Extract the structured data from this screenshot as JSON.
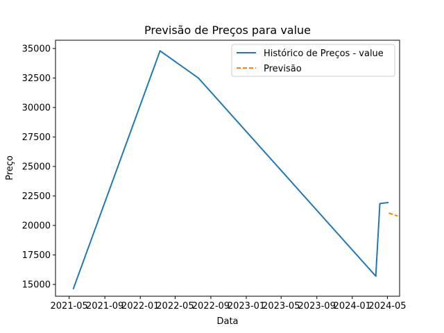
{
  "chart_data": {
    "type": "line",
    "title": "Previsão de Preços para value",
    "xlabel": "Data",
    "ylabel": "Preço",
    "x_tick_labels": [
      "2021-05",
      "2021-09",
      "2022-01",
      "2022-05",
      "2022-09",
      "2023-01",
      "2023-05",
      "2023-09",
      "2024-01",
      "2024-05"
    ],
    "x_tick_dates": [
      "2021-05-01",
      "2021-09-01",
      "2022-01-01",
      "2022-05-01",
      "2022-09-01",
      "2023-01-01",
      "2023-05-01",
      "2023-09-01",
      "2024-01-01",
      "2024-05-01"
    ],
    "xlim": [
      "2021-03-15",
      "2024-06-12"
    ],
    "y_ticks": [
      15000,
      17500,
      20000,
      22500,
      25000,
      27500,
      30000,
      32500,
      35000
    ],
    "y_tick_labels": [
      "15000",
      "17500",
      "20000",
      "22500",
      "25000",
      "27500",
      "30000",
      "32500",
      "35000"
    ],
    "ylim": [
      14000,
      35700
    ],
    "series": [
      {
        "name": "Histórico de Preços - value",
        "color": "#1f77b4",
        "style": "solid",
        "points": [
          {
            "date": "2021-05-15",
            "value": 14600
          },
          {
            "date": "2022-03-10",
            "value": 34800
          },
          {
            "date": "2022-07-20",
            "value": 32500
          },
          {
            "date": "2024-03-22",
            "value": 15700
          },
          {
            "date": "2024-04-05",
            "value": 21850
          },
          {
            "date": "2024-05-05",
            "value": 21950
          }
        ]
      },
      {
        "name": "Previsão",
        "color": "#ff7f0e",
        "style": "dashed",
        "points": [
          {
            "date": "2024-05-06",
            "value": 21050
          },
          {
            "date": "2024-06-05",
            "value": 20800
          }
        ]
      }
    ],
    "legend_position": "top-right"
  }
}
